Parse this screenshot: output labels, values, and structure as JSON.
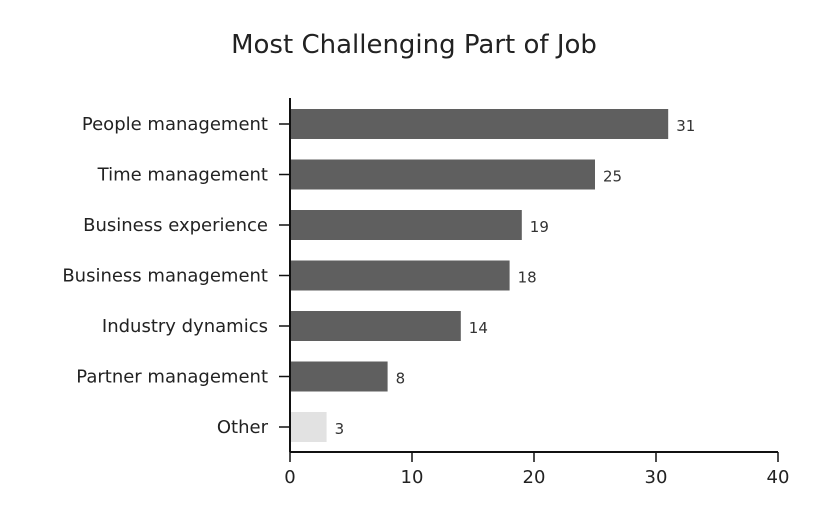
{
  "chart_data": {
    "type": "bar",
    "orientation": "horizontal",
    "title": "Most Challenging Part of Job",
    "xlabel": "",
    "ylabel": "",
    "xlim": [
      0,
      40
    ],
    "x_ticks": [
      0,
      10,
      20,
      30,
      40
    ],
    "grid": false,
    "categories": [
      "People management",
      "Time management",
      "Business experience",
      "Business management",
      "Industry dynamics",
      "Partner management",
      "Other"
    ],
    "values": [
      31,
      25,
      19,
      18,
      14,
      8,
      3
    ],
    "colors": {
      "bar": "#5f5f5f",
      "highlight_bar": "#e2e2e2",
      "axis": "#111111"
    },
    "highlight_category": "Other"
  }
}
